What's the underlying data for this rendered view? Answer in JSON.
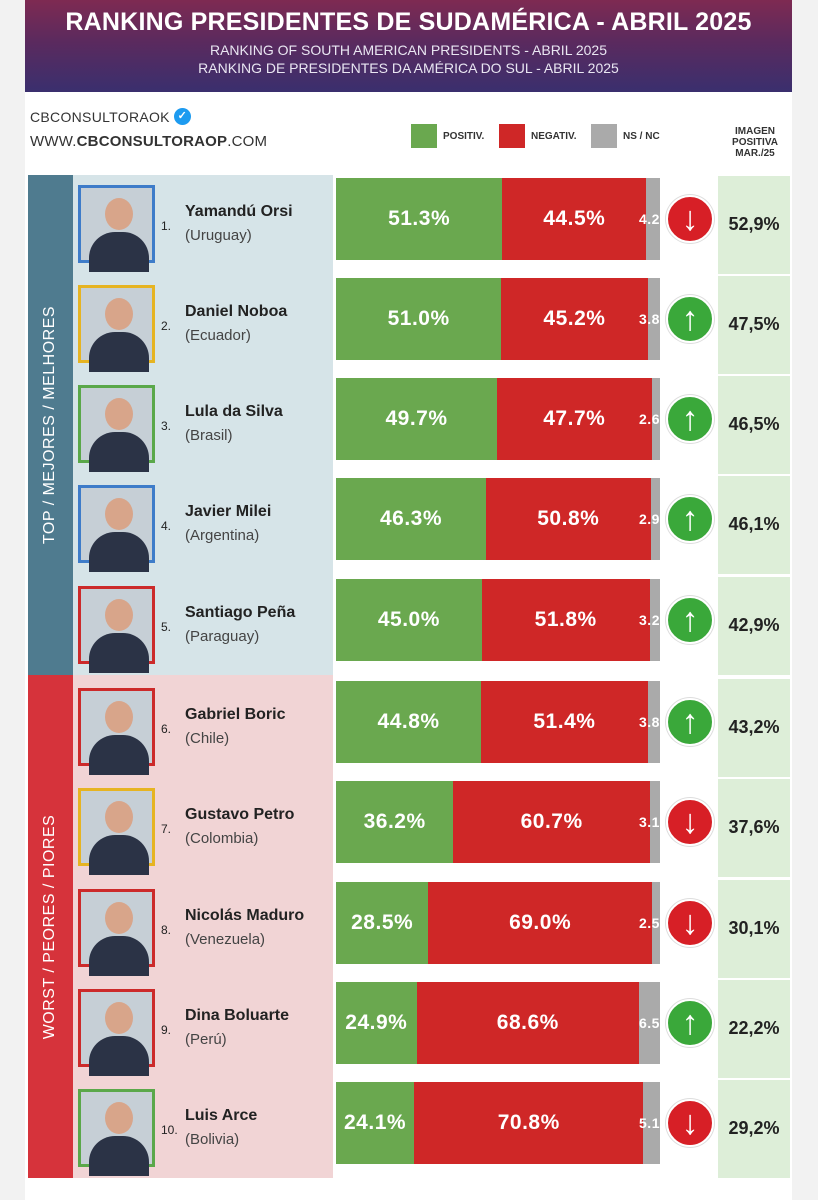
{
  "header": {
    "title": "RANKING PRESIDENTES DE SUDAMÉRICA - ABRIL 2025",
    "subtitle_en": "RANKING OF SOUTH AMERICAN PRESIDENTS - ABRIL 2025",
    "subtitle_pt": "RANKING DE PRESIDENTES DA AMÉRICA DO SUL - ABRIL 2025"
  },
  "brand": {
    "handle": "CBCONSULTORAOK",
    "verified_icon": "✓",
    "url_prefix": "WWW.",
    "url_domain": "CBCONSULTORAOP",
    "url_suffix": ".COM"
  },
  "legend": {
    "positive": "POSITIV.",
    "negative": "NEGATIV.",
    "nsnc": "NS / NC"
  },
  "imagen_header": {
    "line1": "IMAGEN",
    "line2": "POSITIVA",
    "line3": "MAR./25"
  },
  "sections": {
    "top": "TOP / MEJORES / MELHORES",
    "worst": "WORST / PEORES / PIORES"
  },
  "colors": {
    "positive": "#6aa84f",
    "negative": "#cf2727",
    "nsnc": "#aaaaaa",
    "arrow_up": "#3aa83a",
    "arrow_down": "#d71f26",
    "frame_blue": "#3e7cc9",
    "frame_yellow": "#e6b422",
    "frame_green": "#5aa84a",
    "frame_red": "#cc2a2a"
  },
  "chart_data": {
    "type": "bar",
    "stacked": true,
    "orientation": "horizontal",
    "categories": [
      "Yamandú Orsi",
      "Daniel Noboa",
      "Lula da Silva",
      "Javier Milei",
      "Santiago Peña",
      "Gabriel Boric",
      "Gustavo Petro",
      "Nicolás Maduro",
      "Dina Boluarte",
      "Luis Arce"
    ],
    "series": [
      {
        "name": "POSITIV.",
        "values": [
          51.3,
          51.0,
          49.7,
          46.3,
          45.0,
          44.8,
          36.2,
          28.5,
          24.9,
          24.1
        ]
      },
      {
        "name": "NEGATIV.",
        "values": [
          44.5,
          45.2,
          47.7,
          50.8,
          51.8,
          51.4,
          60.7,
          69.0,
          68.6,
          70.8
        ]
      },
      {
        "name": "NS / NC",
        "values": [
          4.2,
          3.8,
          2.6,
          2.9,
          3.2,
          3.8,
          3.1,
          2.5,
          6.5,
          5.1
        ]
      }
    ],
    "xlim": [
      0,
      100
    ]
  },
  "presidents": [
    {
      "rank": "1.",
      "name": "Yamandú Orsi",
      "country": "(Uruguay)",
      "pos": "51.3%",
      "neg": "44.5%",
      "ns": "4.2",
      "trend": "down",
      "trend_icon": "arrow-down-icon",
      "imagen": "52,9%",
      "frame": "blue"
    },
    {
      "rank": "2.",
      "name": "Daniel Noboa",
      "country": "(Ecuador)",
      "pos": "51.0%",
      "neg": "45.2%",
      "ns": "3.8",
      "trend": "up",
      "trend_icon": "arrow-up-icon",
      "imagen": "47,5%",
      "frame": "yellow"
    },
    {
      "rank": "3.",
      "name": "Lula da Silva",
      "country": "(Brasil)",
      "pos": "49.7%",
      "neg": "47.7%",
      "ns": "2.6",
      "trend": "up",
      "trend_icon": "arrow-up-icon",
      "imagen": "46,5%",
      "frame": "green"
    },
    {
      "rank": "4.",
      "name": "Javier Milei",
      "country": "(Argentina)",
      "pos": "46.3%",
      "neg": "50.8%",
      "ns": "2.9",
      "trend": "up",
      "trend_icon": "arrow-up-icon",
      "imagen": "46,1%",
      "frame": "blue"
    },
    {
      "rank": "5.",
      "name": "Santiago Peña",
      "country": "(Paraguay)",
      "pos": "45.0%",
      "neg": "51.8%",
      "ns": "3.2",
      "trend": "up",
      "trend_icon": "arrow-up-icon",
      "imagen": "42,9%",
      "frame": "red"
    },
    {
      "rank": "6.",
      "name": "Gabriel Boric",
      "country": "(Chile)",
      "pos": "44.8%",
      "neg": "51.4%",
      "ns": "3.8",
      "trend": "up",
      "trend_icon": "arrow-up-icon",
      "imagen": "43,2%",
      "frame": "red"
    },
    {
      "rank": "7.",
      "name": "Gustavo Petro",
      "country": "(Colombia)",
      "pos": "36.2%",
      "neg": "60.7%",
      "ns": "3.1",
      "trend": "down",
      "trend_icon": "arrow-down-icon",
      "imagen": "37,6%",
      "frame": "yellow"
    },
    {
      "rank": "8.",
      "name": "Nicolás Maduro",
      "country": "(Venezuela)",
      "pos": "28.5%",
      "neg": "69.0%",
      "ns": "2.5",
      "trend": "down",
      "trend_icon": "arrow-down-icon",
      "imagen": "30,1%",
      "frame": "red"
    },
    {
      "rank": "9.",
      "name": "Dina Boluarte",
      "country": "(Perú)",
      "pos": "24.9%",
      "neg": "68.6%",
      "ns": "6.5",
      "trend": "up",
      "trend_icon": "arrow-up-icon",
      "imagen": "22,2%",
      "frame": "red"
    },
    {
      "rank": "10.",
      "name": "Luis Arce",
      "country": "(Bolivia)",
      "pos": "24.1%",
      "neg": "70.8%",
      "ns": "5.1",
      "trend": "down",
      "trend_icon": "arrow-down-icon",
      "imagen": "29,2%",
      "frame": "green"
    }
  ]
}
